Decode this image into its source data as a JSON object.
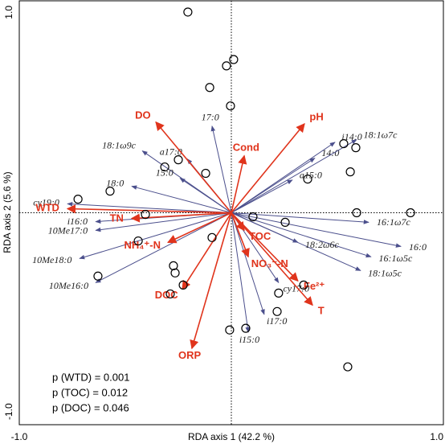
{
  "chart_data": {
    "type": "biplot",
    "x_label": "RDA axis 1 (42.2 %)",
    "y_label": "RDA axis 2 (5.6 %)",
    "xlim": [
      -1,
      1
    ],
    "ylim": [
      -1,
      1
    ],
    "xticks": [
      {
        "value": -1,
        "label": "-1.0"
      },
      {
        "value": 1,
        "label": "1.0"
      }
    ],
    "yticks": [
      {
        "value": -1,
        "label": "-1.0"
      },
      {
        "value": 1,
        "label": "1.0"
      }
    ],
    "sites": {
      "color": "#000000",
      "x": [
        -0.205,
        0.011,
        -0.023,
        -0.102,
        -0.004,
        0.53,
        0.587,
        -0.25,
        -0.314,
        -0.121,
        0.36,
        0.561,
        -0.572,
        -0.723,
        -0.405,
        0.102,
        0.591,
        0.845,
        0.254,
        -0.439,
        -0.091,
        -0.273,
        -0.265,
        -0.629,
        -0.227,
        -0.288,
        0.341,
        0.223,
        0.216,
        0.068,
        -0.008,
        0.549
      ],
      "y": [
        0.947,
        0.723,
        0.693,
        0.591,
        0.504,
        0.326,
        0.307,
        0.25,
        0.216,
        0.186,
        0.159,
        0.193,
        0.102,
        0.064,
        -0.008,
        -0.019,
        0,
        0,
        -0.045,
        -0.133,
        -0.117,
        -0.25,
        -0.284,
        -0.299,
        -0.341,
        -0.383,
        -0.341,
        -0.379,
        -0.466,
        -0.545,
        -0.553,
        -0.727
      ]
    },
    "species_vectors": {
      "color": "#4b4f8c",
      "labels": [
        "17:0",
        "a17:0",
        "18:1ω9c",
        "18:0",
        "15:0",
        "cy19:0",
        "i16:0",
        "10Me17:0",
        "10Me18:0",
        "10Me16:0",
        "14:0",
        "i14:0",
        "18:1ω7c",
        "a15:0",
        "16:1ω7c",
        "16:0",
        "16:1ω5c",
        "18:1ω5c",
        "18:2ω6c",
        "cy17:0",
        "i17:0",
        "i15:0"
      ],
      "x": [
        -0.091,
        -0.208,
        -0.42,
        -0.47,
        -0.242,
        -0.773,
        -0.64,
        -0.64,
        -0.716,
        -0.64,
        0.394,
        0.489,
        0.591,
        0.288,
        0.648,
        0.8,
        0.659,
        0.61,
        0.314,
        0.223,
        0.155,
        0.08
      ],
      "y": [
        0.409,
        0.254,
        0.292,
        0.125,
        0.163,
        0.042,
        -0.042,
        -0.083,
        -0.216,
        -0.33,
        0.258,
        0.333,
        0.345,
        0.155,
        -0.045,
        -0.159,
        -0.208,
        -0.273,
        -0.14,
        -0.33,
        -0.48,
        -0.564
      ]
    },
    "environment_vectors": {
      "color": "#e0341c",
      "labels": [
        "DO",
        "pH",
        "Cond",
        "WTD",
        "TN",
        "NH₄⁺-N",
        "TOC",
        "NO₃⁻-N",
        "Fe²⁺",
        "T",
        "DOC",
        "ORP"
      ],
      "x": [
        -0.356,
        0.345,
        0.061,
        -0.773,
        -0.47,
        -0.299,
        0.061,
        0.08,
        0.314,
        0.383,
        -0.231,
        -0.186
      ],
      "y": [
        0.428,
        0.42,
        0.269,
        0.019,
        -0.027,
        -0.14,
        -0.083,
        -0.208,
        -0.322,
        -0.436,
        -0.36,
        -0.64
      ]
    },
    "annotations": [
      "p (WTD) = 0.001",
      "p (TOC) = 0.012",
      "p (DOC) = 0.046"
    ]
  }
}
